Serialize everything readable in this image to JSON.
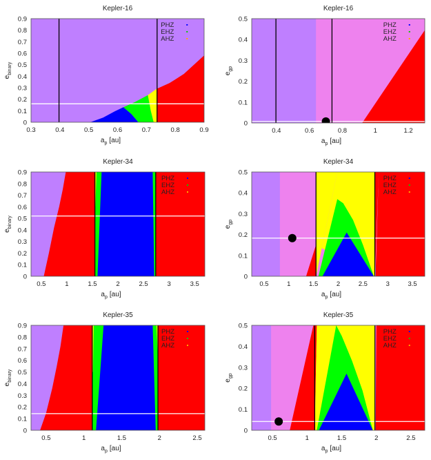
{
  "colors": {
    "purple": "#bf7fff",
    "pink": "#ee82ee",
    "red": "#ff0000",
    "blue": "#0000ff",
    "green": "#00ff00",
    "yellow": "#ffff00",
    "line_black": "#000000",
    "line_white": "#ffffff",
    "legend_phz": "#0000ff",
    "legend_ehz": "#00cc00",
    "legend_ahz": "#ffaa00"
  },
  "legend": [
    "PHZ",
    "EHZ",
    "AHZ"
  ],
  "chart_data": [
    {
      "type": "area",
      "title": "Kepler-16",
      "xlabel_main": "a",
      "xlabel_sub": "p",
      "xlabel_unit": "[au]",
      "ylabel_main": "e",
      "ylabel_sub": "binary",
      "xlim": [
        0.3,
        0.9
      ],
      "ylim": [
        0,
        0.9
      ],
      "xticks": [
        "0.3",
        "0.4",
        "0.5",
        "0.6",
        "0.7",
        "0.8",
        "0.9"
      ],
      "xtick_values": [
        0.3,
        0.4,
        0.5,
        0.6,
        0.7,
        0.8,
        0.9
      ],
      "yticks": [
        "0",
        "0.1",
        "0.2",
        "0.3",
        "0.4",
        "0.5",
        "0.6",
        "0.7",
        "0.8",
        "0.9"
      ],
      "ytick_values": [
        0,
        0.1,
        0.2,
        0.3,
        0.4,
        0.5,
        0.6,
        0.7,
        0.8,
        0.9
      ],
      "background": "purple",
      "regions": [
        {
          "name": "unstable",
          "color": "red",
          "points": [
            [
              0.735,
              0.29
            ],
            [
              0.78,
              0.34
            ],
            [
              0.83,
              0.42
            ],
            [
              0.9,
              0.58
            ],
            [
              0.9,
              0
            ],
            [
              0.735,
              0
            ]
          ]
        },
        {
          "name": "AHZ",
          "color": "yellow",
          "points": [
            [
              0.705,
              0.235
            ],
            [
              0.735,
              0.29
            ],
            [
              0.735,
              0
            ],
            [
              0.725,
              0
            ],
            [
              0.715,
              0.1
            ]
          ]
        },
        {
          "name": "EHZ",
          "color": "green",
          "points": [
            [
              0.62,
              0.13
            ],
            [
              0.66,
              0.175
            ],
            [
              0.705,
              0.235
            ],
            [
              0.715,
              0.1
            ],
            [
              0.725,
              0
            ],
            [
              0.672,
              0
            ],
            [
              0.648,
              0.07
            ]
          ]
        },
        {
          "name": "PHZ",
          "color": "blue",
          "points": [
            [
              0.505,
              0
            ],
            [
              0.55,
              0.04
            ],
            [
              0.59,
              0.095
            ],
            [
              0.62,
              0.13
            ],
            [
              0.648,
              0.07
            ],
            [
              0.672,
              0
            ]
          ]
        }
      ],
      "vlines": [
        0.397,
        0.737
      ],
      "hline": 0.16,
      "marker": null
    },
    {
      "type": "area",
      "title": "Kepler-16",
      "xlabel_main": "a",
      "xlabel_sub": "p",
      "xlabel_unit": "[au]",
      "ylabel_main": "e",
      "ylabel_sub": "gp",
      "xlim": [
        0.25,
        1.3
      ],
      "ylim": [
        0,
        0.5
      ],
      "xticks": [
        "0.4",
        "0.6",
        "0.8",
        "1",
        "1.2"
      ],
      "xtick_values": [
        0.4,
        0.6,
        0.8,
        1.0,
        1.2
      ],
      "yticks": [
        "0",
        "0.1",
        "0.2",
        "0.3",
        "0.4",
        "0.5"
      ],
      "ytick_values": [
        0,
        0.1,
        0.2,
        0.3,
        0.4,
        0.5
      ],
      "background": "purple",
      "regions": [
        {
          "name": "gp-excluded",
          "color": "pink",
          "points": [
            [
              0.64,
              0
            ],
            [
              0.64,
              0.5
            ],
            [
              1.3,
              0.5
            ],
            [
              1.3,
              0
            ]
          ]
        },
        {
          "name": "unstable",
          "color": "red",
          "points": [
            [
              0.92,
              0
            ],
            [
              1.3,
              0.445
            ],
            [
              1.3,
              0
            ]
          ]
        }
      ],
      "vlines": [
        0.397,
        0.737
      ],
      "hline": 0.007,
      "marker": [
        0.7,
        0.007
      ]
    },
    {
      "type": "area",
      "title": "Kepler-34",
      "xlabel_main": "a",
      "xlabel_sub": "p",
      "xlabel_unit": "[au]",
      "ylabel_main": "e",
      "ylabel_sub": "binary",
      "xlim": [
        0.3,
        3.7
      ],
      "ylim": [
        0,
        0.9
      ],
      "xticks": [
        "0.5",
        "1",
        "1.5",
        "2",
        "2.5",
        "3",
        "3.5"
      ],
      "xtick_values": [
        0.5,
        1,
        1.5,
        2,
        2.5,
        3,
        3.5
      ],
      "yticks": [
        "0",
        "0.1",
        "0.2",
        "0.3",
        "0.4",
        "0.5",
        "0.6",
        "0.7",
        "0.8",
        "0.9"
      ],
      "ytick_values": [
        0,
        0.1,
        0.2,
        0.3,
        0.4,
        0.5,
        0.6,
        0.7,
        0.8,
        0.9
      ],
      "background": "purple",
      "regions": [
        {
          "name": "unstable",
          "color": "red",
          "points": [
            [
              0.55,
              0
            ],
            [
              0.65,
              0.2
            ],
            [
              0.75,
              0.42
            ],
            [
              0.85,
              0.6
            ],
            [
              0.92,
              0.75
            ],
            [
              0.98,
              0.9
            ],
            [
              3.7,
              0.9
            ],
            [
              3.7,
              0
            ]
          ]
        },
        {
          "name": "EHZ",
          "color": "green",
          "points": [
            [
              1.55,
              0
            ],
            [
              1.55,
              0.9
            ],
            [
              2.74,
              0.9
            ],
            [
              2.74,
              0
            ]
          ]
        },
        {
          "name": "PHZ",
          "color": "blue",
          "points": [
            [
              1.6,
              0
            ],
            [
              1.68,
              0.9
            ],
            [
              2.68,
              0.9
            ],
            [
              2.71,
              0
            ]
          ]
        },
        {
          "name": "AHZ",
          "color": "yellow",
          "points": [
            [
              1.55,
              0.9
            ],
            [
              1.58,
              0.9
            ],
            [
              1.56,
              0.6
            ],
            [
              1.55,
              0.6
            ]
          ]
        },
        {
          "name": "unstable-outer",
          "color": "red",
          "points": [
            [
              2.74,
              0
            ],
            [
              2.74,
              0.9
            ],
            [
              3.7,
              0.9
            ],
            [
              3.7,
              0
            ]
          ]
        }
      ],
      "vlines": [
        1.55,
        2.74
      ],
      "hline": 0.52,
      "marker": null
    },
    {
      "type": "area",
      "title": "Kepler-34",
      "xlabel_main": "a",
      "xlabel_sub": "p",
      "xlabel_unit": "[au]",
      "ylabel_main": "e",
      "ylabel_sub": "gp",
      "xlim": [
        0.25,
        3.75
      ],
      "ylim": [
        0,
        0.5
      ],
      "xticks": [
        "0.5",
        "1",
        "1.5",
        "2",
        "2.5",
        "3",
        "3.5"
      ],
      "xtick_values": [
        0.5,
        1,
        1.5,
        2,
        2.5,
        3,
        3.5
      ],
      "yticks": [
        "0",
        "0.1",
        "0.2",
        "0.3",
        "0.4",
        "0.5"
      ],
      "ytick_values": [
        0,
        0.1,
        0.2,
        0.3,
        0.4,
        0.5
      ],
      "background": "purple",
      "regions": [
        {
          "name": "gp-excluded",
          "color": "pink",
          "points": [
            [
              0.82,
              0
            ],
            [
              0.82,
              0.5
            ],
            [
              3.75,
              0.5
            ],
            [
              3.75,
              0
            ]
          ]
        },
        {
          "name": "unstable-inner",
          "color": "red",
          "points": [
            [
              1.35,
              0
            ],
            [
              1.55,
              0.15
            ],
            [
              1.55,
              0
            ]
          ]
        },
        {
          "name": "AHZ",
          "color": "yellow",
          "points": [
            [
              1.55,
              0.15
            ],
            [
              1.55,
              0
            ],
            [
              1.98,
              0.5
            ],
            [
              2.74,
              0.5
            ],
            [
              2.74,
              0
            ]
          ]
        },
        {
          "name": "AHZ-wedge",
          "color": "yellow",
          "points": [
            [
              1.55,
              0
            ],
            [
              1.55,
              0.5
            ],
            [
              1.98,
              0.5
            ]
          ]
        },
        {
          "name": "EHZ",
          "color": "green",
          "points": [
            [
              1.6,
              0
            ],
            [
              1.98,
              0.37
            ],
            [
              2.1,
              0.35
            ],
            [
              2.3,
              0.27
            ],
            [
              2.5,
              0.15
            ],
            [
              2.72,
              0
            ]
          ]
        },
        {
          "name": "PHZ",
          "color": "blue",
          "points": [
            [
              1.68,
              0
            ],
            [
              2.17,
              0.21
            ],
            [
              2.72,
              0
            ]
          ]
        },
        {
          "name": "unstable-outer",
          "color": "red",
          "points": [
            [
              2.74,
              0
            ],
            [
              2.74,
              0.5
            ],
            [
              2.82,
              0.5
            ],
            [
              2.76,
              0.05
            ],
            [
              2.76,
              0
            ],
            [
              3.75,
              0
            ],
            [
              3.75,
              0.5
            ],
            [
              2.82,
              0.5
            ]
          ]
        },
        {
          "name": "unstable-outer-main",
          "color": "red",
          "points": [
            [
              2.76,
              0
            ],
            [
              2.82,
              0.5
            ],
            [
              3.75,
              0.5
            ],
            [
              3.75,
              0
            ]
          ]
        }
      ],
      "vlines": [
        1.55,
        2.74
      ],
      "hline": 0.183,
      "marker": [
        1.07,
        0.183
      ]
    },
    {
      "type": "area",
      "title": "Kepler-35",
      "xlabel_main": "a",
      "xlabel_sub": "p",
      "xlabel_unit": "[au]",
      "ylabel_main": "e",
      "ylabel_sub": "binary",
      "xlim": [
        0.3,
        2.6
      ],
      "ylim": [
        0,
        0.9
      ],
      "xticks": [
        "0.5",
        "1",
        "1.5",
        "2",
        "2.5"
      ],
      "xtick_values": [
        0.5,
        1,
        1.5,
        2,
        2.5
      ],
      "yticks": [
        "0",
        "0.1",
        "0.2",
        "0.3",
        "0.4",
        "0.5",
        "0.6",
        "0.7",
        "0.8",
        "0.9"
      ],
      "ytick_values": [
        0,
        0.1,
        0.2,
        0.3,
        0.4,
        0.5,
        0.6,
        0.7,
        0.8,
        0.9
      ],
      "background": "purple",
      "regions": [
        {
          "name": "unstable",
          "color": "red",
          "points": [
            [
              0.42,
              0
            ],
            [
              0.5,
              0.15
            ],
            [
              0.58,
              0.36
            ],
            [
              0.64,
              0.55
            ],
            [
              0.69,
              0.72
            ],
            [
              0.73,
              0.9
            ],
            [
              2.6,
              0.9
            ],
            [
              2.6,
              0
            ]
          ]
        },
        {
          "name": "EHZ",
          "color": "green",
          "points": [
            [
              1.11,
              0
            ],
            [
              1.11,
              0.9
            ],
            [
              1.98,
              0.9
            ],
            [
              1.98,
              0
            ]
          ]
        },
        {
          "name": "PHZ",
          "color": "blue",
          "points": [
            [
              1.16,
              0
            ],
            [
              1.26,
              0.9
            ],
            [
              1.91,
              0.9
            ],
            [
              1.95,
              0
            ]
          ]
        },
        {
          "name": "AHZ-inner",
          "color": "yellow",
          "points": [
            [
              1.11,
              0.9
            ],
            [
              1.13,
              0.9
            ],
            [
              1.12,
              0.5
            ],
            [
              1.11,
              0.5
            ]
          ]
        },
        {
          "name": "AHZ-outer",
          "color": "yellow",
          "points": [
            [
              1.96,
              0.9
            ],
            [
              1.98,
              0.9
            ],
            [
              1.98,
              0.6
            ]
          ]
        },
        {
          "name": "unstable-outer",
          "color": "red",
          "points": [
            [
              1.98,
              0
            ],
            [
              1.98,
              0.9
            ],
            [
              2.6,
              0.9
            ],
            [
              2.6,
              0
            ]
          ]
        }
      ],
      "vlines": [
        1.11,
        1.98
      ],
      "hline": 0.143,
      "marker": null
    },
    {
      "type": "area",
      "title": "Kepler-35",
      "xlabel_main": "a",
      "xlabel_sub": "p",
      "xlabel_unit": "[au]",
      "ylabel_main": "e",
      "ylabel_sub": "gp",
      "xlim": [
        0.2,
        2.7
      ],
      "ylim": [
        0,
        0.5
      ],
      "xticks": [
        "0.5",
        "1",
        "1.5",
        "2",
        "2.5"
      ],
      "xtick_values": [
        0.5,
        1,
        1.5,
        2,
        2.5
      ],
      "yticks": [
        "0",
        "0.1",
        "0.2",
        "0.3",
        "0.4",
        "0.5"
      ],
      "ytick_values": [
        0,
        0.1,
        0.2,
        0.3,
        0.4,
        0.5
      ],
      "background": "purple",
      "regions": [
        {
          "name": "gp-excluded",
          "color": "pink",
          "points": [
            [
              0.48,
              0
            ],
            [
              0.48,
              0.5
            ],
            [
              2.7,
              0.5
            ],
            [
              2.7,
              0
            ]
          ]
        },
        {
          "name": "unstable-inner",
          "color": "red",
          "points": [
            [
              0.75,
              0
            ],
            [
              1.09,
              0.5
            ],
            [
              1.14,
              0.5
            ],
            [
              1.11,
              0
            ]
          ]
        },
        {
          "name": "AHZ",
          "color": "yellow",
          "points": [
            [
              1.11,
              0
            ],
            [
              1.14,
              0.5
            ],
            [
              1.98,
              0.5
            ],
            [
              1.98,
              0
            ]
          ]
        },
        {
          "name": "EHZ",
          "color": "green",
          "points": [
            [
              1.14,
              0
            ],
            [
              1.42,
              0.5
            ],
            [
              1.5,
              0.45
            ],
            [
              1.65,
              0.33
            ],
            [
              1.8,
              0.19
            ],
            [
              1.95,
              0
            ]
          ]
        },
        {
          "name": "PHZ",
          "color": "blue",
          "points": [
            [
              1.17,
              0
            ],
            [
              1.57,
              0.27
            ],
            [
              1.95,
              0
            ]
          ]
        },
        {
          "name": "unstable-outer",
          "color": "red",
          "points": [
            [
              1.99,
              0
            ],
            [
              2.0,
              0.5
            ],
            [
              2.7,
              0.5
            ],
            [
              2.7,
              0
            ]
          ]
        }
      ],
      "vlines": [
        1.11,
        1.98
      ],
      "hline": 0.042,
      "marker": [
        0.59,
        0.042
      ]
    }
  ]
}
